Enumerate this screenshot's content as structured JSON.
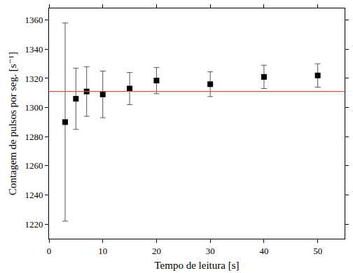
{
  "chart_data": {
    "type": "scatter",
    "x_label": "Tempo de leitura [s]",
    "y_label": "Contagem de pulsos por seg. [s⁻¹]",
    "x": [
      3,
      5,
      7,
      10,
      15,
      20,
      30,
      40,
      50
    ],
    "series": [
      {
        "type": "scatter",
        "color": "#000000",
        "marker": "square",
        "values": [
          1290,
          1306,
          1311,
          1309,
          1313,
          1318.5,
          1316,
          1321,
          1322
        ],
        "error": [
          68,
          21,
          17,
          16,
          11,
          9,
          8.5,
          8,
          8
        ]
      },
      {
        "type": "line",
        "color": "#d9534f",
        "line_style": "solid",
        "x": [
          0,
          55
        ],
        "values": [
          1311,
          1311
        ]
      }
    ],
    "xlim": [
      0,
      55
    ],
    "xticks": [
      0,
      10,
      20,
      30,
      40,
      50
    ],
    "ylim": [
      1210,
      1368
    ],
    "yticks": [
      1220,
      1240,
      1260,
      1280,
      1300,
      1320,
      1340,
      1360
    ],
    "grid": false
  }
}
